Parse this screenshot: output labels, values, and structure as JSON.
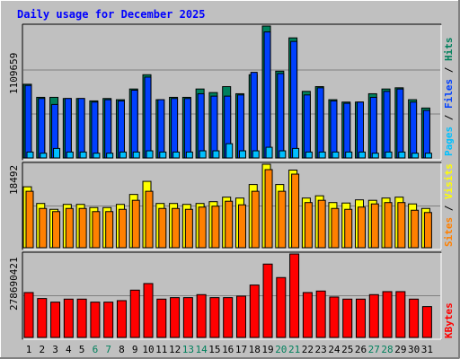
{
  "title": "Daily usage for December 2025",
  "colors": {
    "background": "#c0c0c0",
    "title": "#0000ff",
    "hits": "#00805c",
    "files": "#0040ff",
    "pages": "#00c0ff",
    "visits": "#ffff00",
    "sites": "#ff8000",
    "kbytes": "#ff0000",
    "weekday_label": "#000000",
    "weekend_label": "#00805c",
    "grid": "#808080"
  },
  "chart_data": [
    {
      "type": "bar",
      "panel": "hits-files-pages",
      "ymax_label": "1109659",
      "ylim": [
        0,
        1109659
      ],
      "grid": true,
      "categories": [
        "1",
        "2",
        "3",
        "4",
        "5",
        "6",
        "7",
        "8",
        "9",
        "10",
        "11",
        "12",
        "13",
        "14",
        "15",
        "16",
        "17",
        "18",
        "19",
        "20",
        "21",
        "22",
        "23",
        "24",
        "25",
        "26",
        "27",
        "28",
        "29",
        "30",
        "31"
      ],
      "weekend_days": [
        "6",
        "7",
        "13",
        "14",
        "20",
        "21",
        "27",
        "28"
      ],
      "legend": {
        "hits": "Hits",
        "files": "Files",
        "pages": "Pages",
        "separator": " / "
      },
      "series": [
        {
          "name": "Hits",
          "values": [
            620000,
            510000,
            510000,
            500000,
            500000,
            480000,
            500000,
            490000,
            580000,
            700000,
            490000,
            510000,
            510000,
            580000,
            550000,
            600000,
            540000,
            700000,
            1109659,
            730000,
            1010000,
            560000,
            600000,
            490000,
            470000,
            470000,
            540000,
            580000,
            590000,
            490000,
            420000
          ]
        },
        {
          "name": "Files",
          "values": [
            610000,
            500000,
            450000,
            500000,
            500000,
            470000,
            490000,
            480000,
            570000,
            680000,
            490000,
            500000,
            500000,
            540000,
            520000,
            520000,
            530000,
            720000,
            1060000,
            710000,
            980000,
            530000,
            590000,
            480000,
            460000,
            470000,
            510000,
            560000,
            580000,
            470000,
            400000
          ]
        },
        {
          "name": "Pages",
          "values": [
            50000,
            40000,
            80000,
            50000,
            50000,
            40000,
            40000,
            50000,
            50000,
            60000,
            50000,
            50000,
            50000,
            60000,
            60000,
            120000,
            60000,
            60000,
            90000,
            60000,
            80000,
            50000,
            50000,
            50000,
            50000,
            50000,
            40000,
            50000,
            50000,
            40000,
            40000
          ]
        }
      ]
    },
    {
      "type": "bar",
      "panel": "visits-sites",
      "ymax_label": "18492",
      "ylim": [
        0,
        18492
      ],
      "grid": true,
      "legend": {
        "sites": "Sites",
        "visits": "Visits",
        "separator": " / "
      },
      "series": [
        {
          "name": "Visits",
          "values": [
            13500,
            9800,
            8500,
            9600,
            9600,
            8900,
            8900,
            9600,
            11800,
            14700,
            9800,
            9800,
            9600,
            9800,
            10200,
            11200,
            11000,
            14000,
            18492,
            14000,
            17200,
            11000,
            11500,
            10000,
            9900,
            10600,
            10500,
            11000,
            11200,
            9700,
            8700
          ]
        },
        {
          "name": "Sites",
          "values": [
            12500,
            8700,
            8000,
            8700,
            8700,
            8000,
            8000,
            8500,
            10500,
            12500,
            8700,
            8700,
            8500,
            9000,
            9200,
            10300,
            9500,
            12500,
            17300,
            12500,
            16300,
            10000,
            10500,
            8700,
            8500,
            9000,
            9700,
            10000,
            10000,
            8300,
            7800
          ]
        }
      ]
    },
    {
      "type": "bar",
      "panel": "kbytes",
      "ymax_label": "278690421",
      "ylim": [
        0,
        278690421
      ],
      "grid": true,
      "legend": {
        "kbytes": "KBytes"
      },
      "series": [
        {
          "name": "KBytes",
          "values": [
            150000000,
            130000000,
            118000000,
            128000000,
            128000000,
            118000000,
            118000000,
            123000000,
            158000000,
            180000000,
            128000000,
            133000000,
            133000000,
            143000000,
            133000000,
            133000000,
            138000000,
            175000000,
            245000000,
            200000000,
            278690421,
            150000000,
            155000000,
            135000000,
            128000000,
            128000000,
            143000000,
            153000000,
            153000000,
            128000000,
            103000000
          ]
        }
      ]
    }
  ]
}
